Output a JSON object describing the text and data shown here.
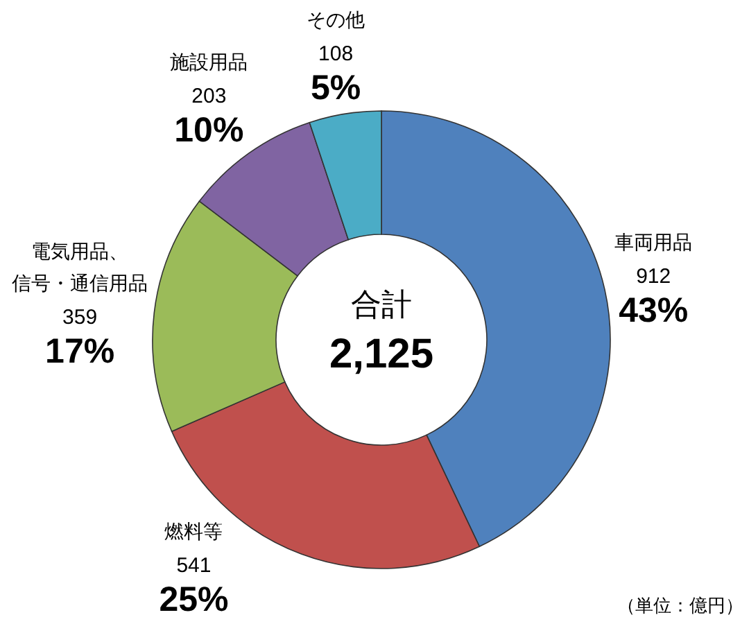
{
  "chart_data": {
    "type": "donut",
    "categories": [
      "車両用品",
      "燃料等",
      "電気用品、信号・通信用品",
      "施設用品",
      "その他"
    ],
    "values": [
      912,
      541,
      359,
      203,
      108
    ],
    "colors": [
      "#4f81bd",
      "#c0504d",
      "#9bbb59",
      "#8064a2",
      "#4bacc6"
    ],
    "value_labels": [
      "912\n43%",
      "541\n25%",
      "359\n17%",
      "203\n10%",
      "108\n5%"
    ],
    "annotations": [
      "合計",
      "2,125",
      "（単位：億円）"
    ]
  }
}
